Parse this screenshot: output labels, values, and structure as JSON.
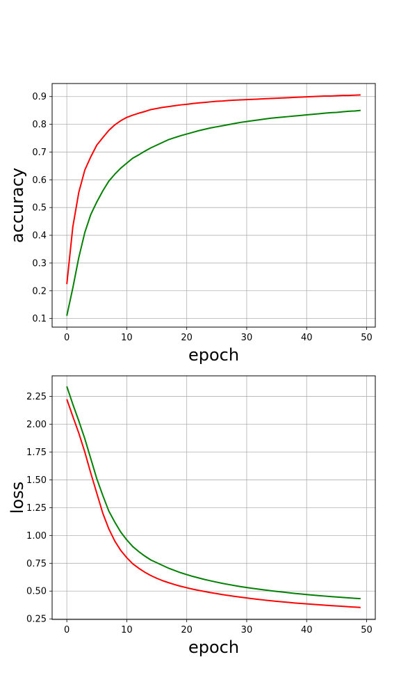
{
  "chart_data": [
    {
      "type": "line",
      "xlabel": "epoch",
      "ylabel": "accuracy",
      "xlim": [
        -2.45,
        51.45
      ],
      "ylim": [
        0.069,
        0.947
      ],
      "xticks": [
        0,
        10,
        20,
        30,
        40,
        50
      ],
      "yticks": [
        0.1,
        0.2,
        0.3,
        0.4,
        0.5,
        0.6,
        0.7,
        0.8,
        0.9
      ],
      "ytick_labels": [
        "0.1",
        "0.2",
        "0.3",
        "0.4",
        "0.5",
        "0.6",
        "0.7",
        "0.8",
        "0.9"
      ],
      "grid": true,
      "x": [
        0,
        1,
        2,
        3,
        4,
        5,
        6,
        7,
        8,
        9,
        10,
        11,
        12,
        13,
        14,
        15,
        16,
        17,
        18,
        19,
        20,
        21,
        22,
        23,
        24,
        25,
        26,
        27,
        28,
        29,
        30,
        31,
        32,
        33,
        34,
        35,
        36,
        37,
        38,
        39,
        40,
        41,
        42,
        43,
        44,
        45,
        46,
        47,
        48,
        49
      ],
      "series": [
        {
          "color": "#ff0000",
          "values": [
            0.224,
            0.43,
            0.555,
            0.635,
            0.683,
            0.725,
            0.752,
            0.778,
            0.798,
            0.813,
            0.825,
            0.833,
            0.84,
            0.846,
            0.853,
            0.857,
            0.861,
            0.864,
            0.867,
            0.87,
            0.872,
            0.875,
            0.877,
            0.879,
            0.881,
            0.883,
            0.884,
            0.886,
            0.887,
            0.888,
            0.889,
            0.89,
            0.891,
            0.892,
            0.893,
            0.894,
            0.895,
            0.896,
            0.897,
            0.898,
            0.899,
            0.9,
            0.901,
            0.902,
            0.902,
            0.903,
            0.904,
            0.904,
            0.905,
            0.906
          ]
        },
        {
          "color": "#008000",
          "values": [
            0.11,
            0.21,
            0.32,
            0.41,
            0.475,
            0.52,
            0.56,
            0.595,
            0.62,
            0.642,
            0.66,
            0.678,
            0.69,
            0.703,
            0.715,
            0.725,
            0.735,
            0.745,
            0.752,
            0.759,
            0.765,
            0.771,
            0.777,
            0.782,
            0.787,
            0.791,
            0.795,
            0.799,
            0.803,
            0.807,
            0.81,
            0.813,
            0.816,
            0.819,
            0.822,
            0.824,
            0.826,
            0.828,
            0.83,
            0.832,
            0.834,
            0.836,
            0.838,
            0.84,
            0.842,
            0.843,
            0.845,
            0.847,
            0.848,
            0.85
          ]
        }
      ]
    },
    {
      "type": "line",
      "xlabel": "epoch",
      "ylabel": "loss",
      "xlim": [
        -2.45,
        51.45
      ],
      "ylim": [
        0.245,
        2.435
      ],
      "xticks": [
        0,
        10,
        20,
        30,
        40,
        50
      ],
      "yticks": [
        0.25,
        0.5,
        0.75,
        1.0,
        1.25,
        1.5,
        1.75,
        2.0,
        2.25
      ],
      "ytick_labels": [
        "0.25",
        "0.50",
        "0.75",
        "1.00",
        "1.25",
        "1.50",
        "1.75",
        "2.00",
        "2.25"
      ],
      "grid": true,
      "x": [
        0,
        1,
        2,
        3,
        4,
        5,
        6,
        7,
        8,
        9,
        10,
        11,
        12,
        13,
        14,
        15,
        16,
        17,
        18,
        19,
        20,
        21,
        22,
        23,
        24,
        25,
        26,
        27,
        28,
        29,
        30,
        31,
        32,
        33,
        34,
        35,
        36,
        37,
        38,
        39,
        40,
        41,
        42,
        43,
        44,
        45,
        46,
        47,
        48,
        49
      ],
      "series": [
        {
          "color": "#ff0000",
          "values": [
            2.225,
            2.07,
            1.92,
            1.75,
            1.56,
            1.38,
            1.2,
            1.06,
            0.95,
            0.865,
            0.8,
            0.745,
            0.705,
            0.67,
            0.64,
            0.615,
            0.593,
            0.575,
            0.558,
            0.543,
            0.53,
            0.517,
            0.506,
            0.496,
            0.486,
            0.477,
            0.468,
            0.46,
            0.452,
            0.445,
            0.438,
            0.431,
            0.425,
            0.419,
            0.413,
            0.408,
            0.403,
            0.398,
            0.393,
            0.389,
            0.385,
            0.381,
            0.377,
            0.373,
            0.369,
            0.366,
            0.363,
            0.359,
            0.356,
            0.353
          ]
        },
        {
          "color": "#008000",
          "values": [
            2.34,
            2.18,
            2.03,
            1.87,
            1.69,
            1.51,
            1.36,
            1.22,
            1.12,
            1.03,
            0.96,
            0.9,
            0.855,
            0.815,
            0.78,
            0.755,
            0.73,
            0.705,
            0.685,
            0.665,
            0.648,
            0.632,
            0.618,
            0.604,
            0.592,
            0.58,
            0.569,
            0.559,
            0.549,
            0.54,
            0.532,
            0.524,
            0.517,
            0.51,
            0.503,
            0.497,
            0.491,
            0.485,
            0.479,
            0.474,
            0.469,
            0.464,
            0.459,
            0.455,
            0.451,
            0.447,
            0.443,
            0.439,
            0.435,
            0.432
          ]
        }
      ]
    }
  ]
}
